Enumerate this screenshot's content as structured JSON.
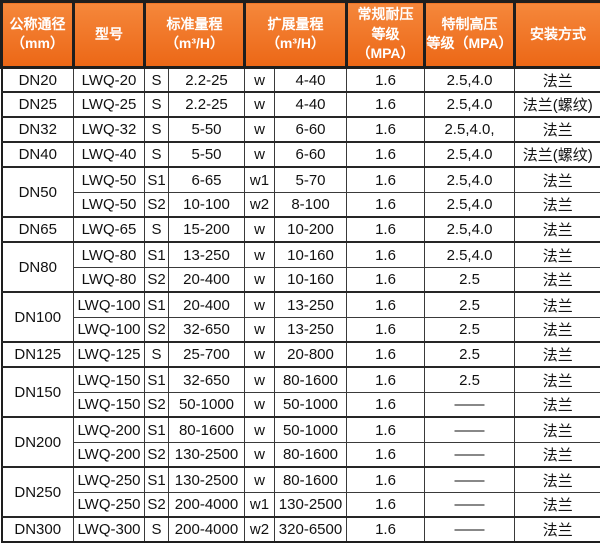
{
  "colors": {
    "header_bg": "#ec6716",
    "header_bg_top": "#f5873b",
    "header_text": "#ffffff",
    "border_thin": "#3a3a3a",
    "border_thick": "#1e1e1e",
    "cell_text": "#111111",
    "cell_bg": "#ffffff"
  },
  "header": {
    "dn": "公称通径\n（mm）",
    "model": "型号",
    "std_range": "标准量程\n（m³/H）",
    "ext_range": "扩展量程\n（m³/H）",
    "normal_pressure": "常规耐压\n等级（MPA）",
    "high_pressure": "特制高压\n等级（MPA）",
    "install": "安装方式"
  },
  "rows": [
    {
      "dn": "DN20",
      "dn_rowspan": 1,
      "model": "LWQ-20",
      "s_code": "S",
      "std_range": "2.2-25",
      "w_code": "w",
      "ext_range": "4-40",
      "normal_mpa": "1.6",
      "high_mpa": "2.5,4.0",
      "install": "法兰"
    },
    {
      "dn": "DN25",
      "dn_rowspan": 1,
      "model": "LWQ-25",
      "s_code": "S",
      "std_range": "2.2-25",
      "w_code": "w",
      "ext_range": "4-40",
      "normal_mpa": "1.6",
      "high_mpa": "2.5,4.0",
      "install": "法兰(螺纹)"
    },
    {
      "dn": "DN32",
      "dn_rowspan": 1,
      "model": "LWQ-32",
      "s_code": "S",
      "std_range": "5-50",
      "w_code": "w",
      "ext_range": "6-60",
      "normal_mpa": "1.6",
      "high_mpa": "2.5,4.0,",
      "install": "法兰"
    },
    {
      "dn": "DN40",
      "dn_rowspan": 1,
      "model": "LWQ-40",
      "s_code": "S",
      "std_range": "5-50",
      "w_code": "w",
      "ext_range": "6-60",
      "normal_mpa": "1.6",
      "high_mpa": "2.5,4.0",
      "install": "法兰(螺纹)"
    },
    {
      "dn": "DN50",
      "dn_rowspan": 2,
      "model": "LWQ-50",
      "s_code": "S1",
      "std_range": "6-65",
      "w_code": "w1",
      "ext_range": "5-70",
      "normal_mpa": "1.6",
      "high_mpa": "2.5,4.0",
      "install": "法兰"
    },
    {
      "dn": null,
      "model": "LWQ-50",
      "s_code": "S2",
      "std_range": "10-100",
      "w_code": "w2",
      "ext_range": "8-100",
      "normal_mpa": "1.6",
      "high_mpa": "2.5,4.0",
      "install": "法兰"
    },
    {
      "dn": "DN65",
      "dn_rowspan": 1,
      "model": "LWQ-65",
      "s_code": "S",
      "std_range": "15-200",
      "w_code": "w",
      "ext_range": "10-200",
      "normal_mpa": "1.6",
      "high_mpa": "2.5,4.0",
      "install": "法兰"
    },
    {
      "dn": "DN80",
      "dn_rowspan": 2,
      "model": "LWQ-80",
      "s_code": "S1",
      "std_range": "13-250",
      "w_code": "w",
      "ext_range": "10-160",
      "normal_mpa": "1.6",
      "high_mpa": "2.5,4.0",
      "install": "法兰"
    },
    {
      "dn": null,
      "model": "LWQ-80",
      "s_code": "S2",
      "std_range": "20-400",
      "w_code": "w",
      "ext_range": "10-160",
      "normal_mpa": "1.6",
      "high_mpa": "2.5",
      "install": "法兰"
    },
    {
      "dn": "DN100",
      "dn_rowspan": 2,
      "model": "LWQ-100",
      "s_code": "S1",
      "std_range": "20-400",
      "w_code": "w",
      "ext_range": "13-250",
      "normal_mpa": "1.6",
      "high_mpa": "2.5",
      "install": "法兰"
    },
    {
      "dn": null,
      "model": "LWQ-100",
      "s_code": "S2",
      "std_range": "32-650",
      "w_code": "w",
      "ext_range": "13-250",
      "normal_mpa": "1.6",
      "high_mpa": "2.5",
      "install": "法兰"
    },
    {
      "dn": "DN125",
      "dn_rowspan": 1,
      "model": "LWQ-125",
      "s_code": "S",
      "std_range": "25-700",
      "w_code": "w",
      "ext_range": "20-800",
      "normal_mpa": "1.6",
      "high_mpa": "2.5",
      "install": "法兰"
    },
    {
      "dn": "DN150",
      "dn_rowspan": 2,
      "model": "LWQ-150",
      "s_code": "S1",
      "std_range": "32-650",
      "w_code": "w",
      "ext_range": "80-1600",
      "normal_mpa": "1.6",
      "high_mpa": "2.5",
      "install": "法兰"
    },
    {
      "dn": null,
      "model": "LWQ-150",
      "s_code": "S2",
      "std_range": "50-1000",
      "w_code": "w",
      "ext_range": "50-1000",
      "normal_mpa": "1.6",
      "high_mpa": "——",
      "install": "法兰"
    },
    {
      "dn": "DN200",
      "dn_rowspan": 2,
      "model": "LWQ-200",
      "s_code": "S1",
      "std_range": "80-1600",
      "w_code": "w",
      "ext_range": "50-1000",
      "normal_mpa": "1.6",
      "high_mpa": "——",
      "install": "法兰"
    },
    {
      "dn": null,
      "model": "LWQ-200",
      "s_code": "S2",
      "std_range": "130-2500",
      "w_code": "w",
      "ext_range": "80-1600",
      "normal_mpa": "1.6",
      "high_mpa": "——",
      "install": "法兰"
    },
    {
      "dn": "DN250",
      "dn_rowspan": 2,
      "model": "LWQ-250",
      "s_code": "S1",
      "std_range": "130-2500",
      "w_code": "w",
      "ext_range": "80-1600",
      "normal_mpa": "1.6",
      "high_mpa": "——",
      "install": "法兰"
    },
    {
      "dn": null,
      "model": "LWQ-250",
      "s_code": "S2",
      "std_range": "200-4000",
      "w_code": "w1",
      "ext_range": "130-2500",
      "normal_mpa": "1.6",
      "high_mpa": "——",
      "install": "法兰"
    },
    {
      "dn": "DN300",
      "dn_rowspan": 1,
      "model": "LWQ-300",
      "s_code": "S",
      "std_range": "200-4000",
      "w_code": "w2",
      "ext_range": "320-6500",
      "normal_mpa": "1.6",
      "high_mpa": "——",
      "install": "法兰"
    }
  ]
}
